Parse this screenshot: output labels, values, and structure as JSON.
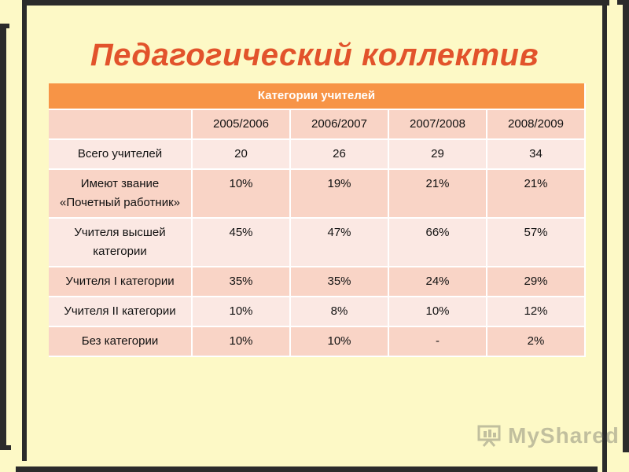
{
  "slide": {
    "title": "Педагогический коллектив"
  },
  "table": {
    "caption": "Категории учителей",
    "years": [
      "2005/2006",
      "2006/2007",
      "2007/2008",
      "2008/2009"
    ],
    "rows": [
      {
        "label": "Всего учителей",
        "values": [
          "20",
          "26",
          "29",
          "34"
        ]
      },
      {
        "label": "Имеют звание «Почетный работник»",
        "values": [
          "10%",
          "19%",
          "21%",
          "21%"
        ]
      },
      {
        "label": "Учителя высшей категории",
        "values": [
          "45%",
          "47%",
          "66%",
          "57%"
        ]
      },
      {
        "label": "Учителя I категории",
        "values": [
          "35%",
          "35%",
          "24%",
          "29%"
        ]
      },
      {
        "label": "Учителя II категории",
        "values": [
          "10%",
          "8%",
          "10%",
          "12%"
        ]
      },
      {
        "label": "Без категории",
        "values": [
          "10%",
          "10%",
          "-",
          "2%"
        ]
      }
    ]
  },
  "watermark": {
    "logo": "MyShared",
    "icon": "presentation-board-icon"
  },
  "colors": {
    "title": "#e2532b",
    "header": "#f79446",
    "row_dark": "#f9d4c6",
    "row_light": "#fbe8e3",
    "background": "#fdf9c6",
    "frame": "#2b2b2b"
  }
}
